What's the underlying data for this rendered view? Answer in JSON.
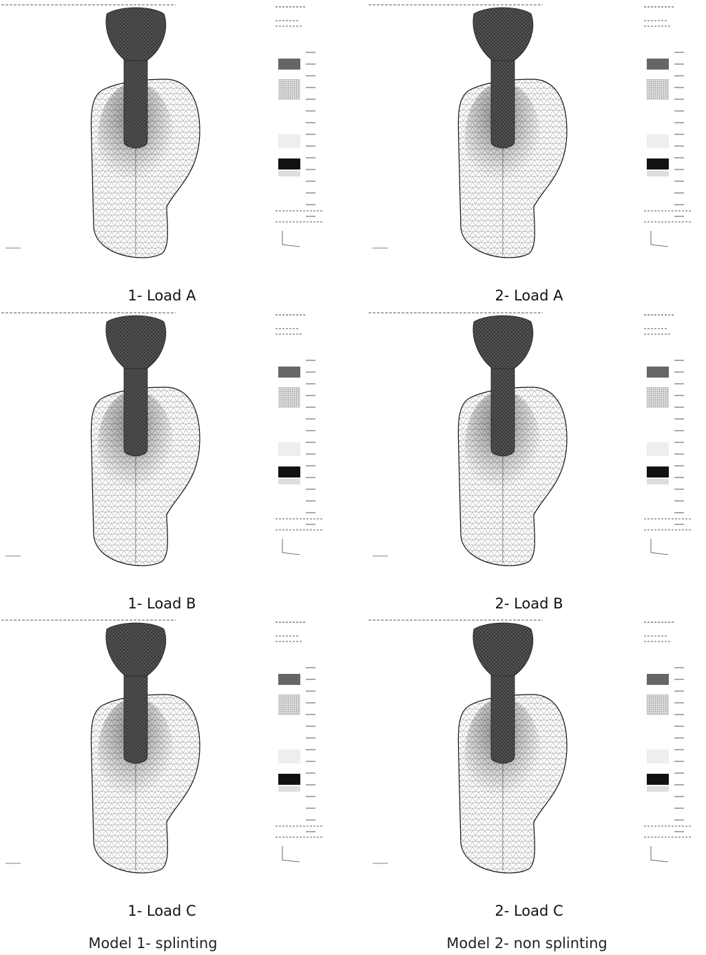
{
  "panels": [
    {
      "label": "1- Load A"
    },
    {
      "label": "2- Load A"
    },
    {
      "label": "1- Load B"
    },
    {
      "label": "2- Load B"
    },
    {
      "label": "1- Load C"
    },
    {
      "label": "2- Load C"
    }
  ],
  "models": [
    {
      "label": "Model 1- splinting"
    },
    {
      "label": "Model 2- non splinting"
    }
  ]
}
